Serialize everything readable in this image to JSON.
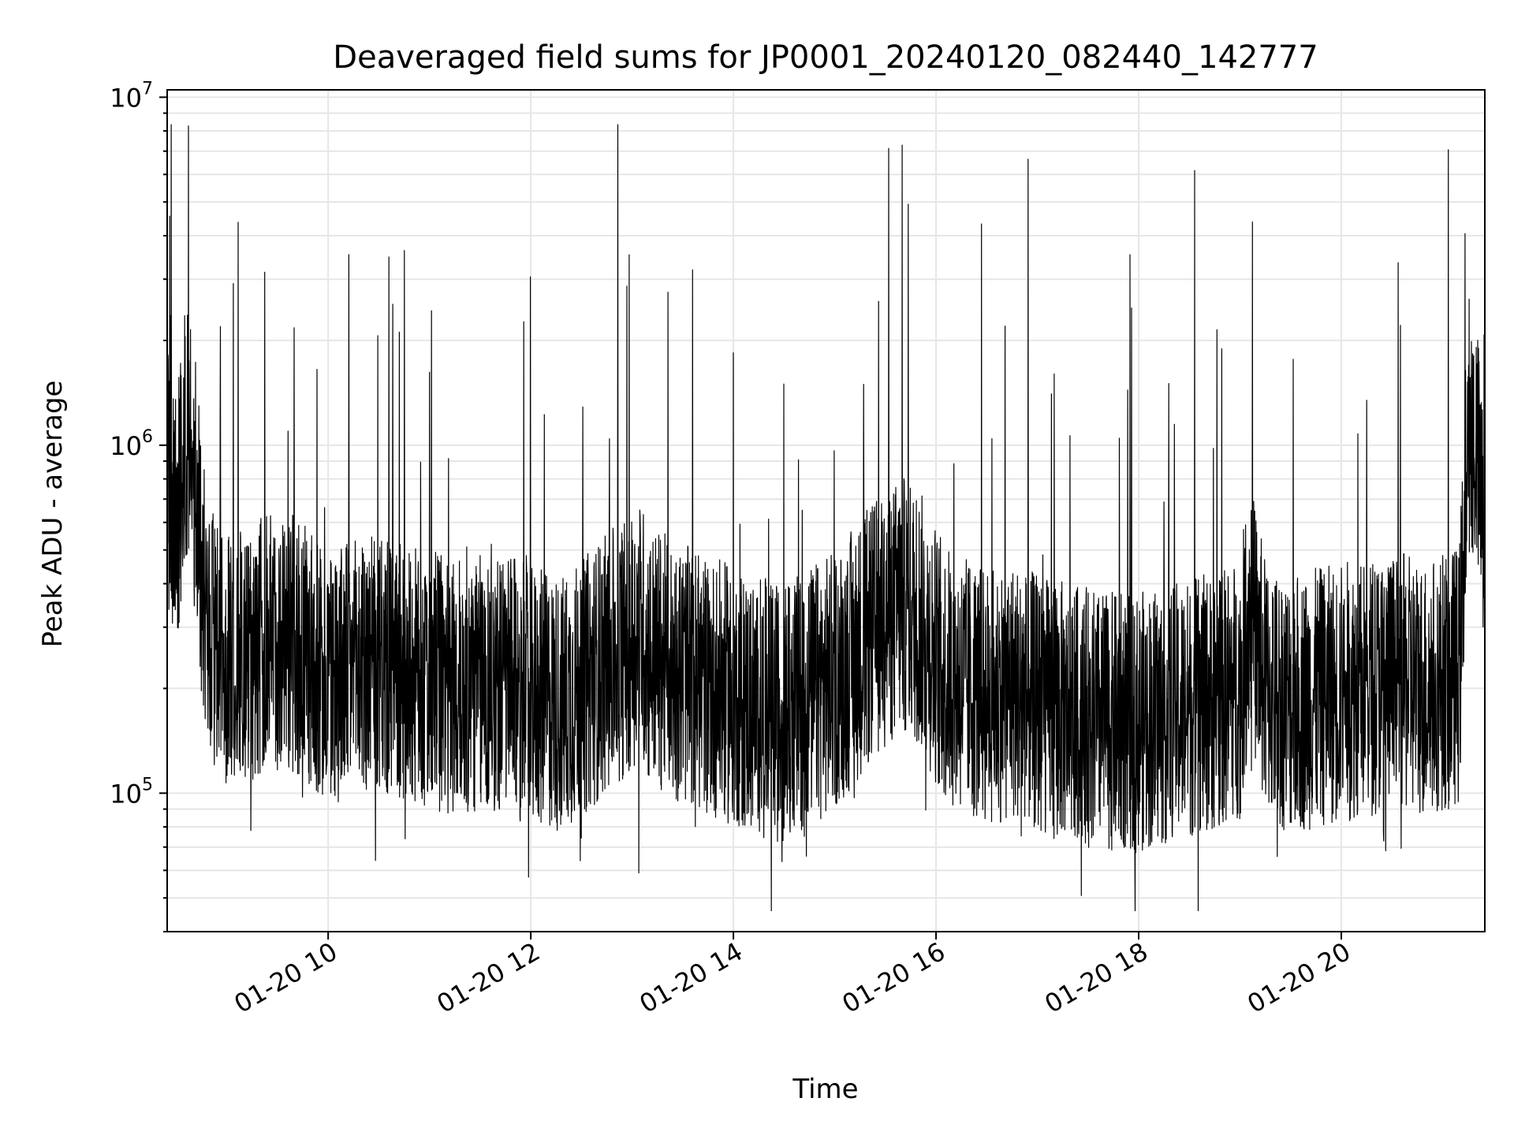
{
  "chart_data": {
    "type": "line",
    "title": "Deaveraged field sums for JP0001_20240120_082440_142777",
    "xlabel": "Time",
    "ylabel": "Peak ADU - average",
    "y_scale": "log",
    "ylim": [
      40000,
      10500000
    ],
    "xlim": [
      "2024-01-20T08:24:40",
      "2024-01-20T21:25:00"
    ],
    "grid": true,
    "line_color": "#000000",
    "grid_color": "#e6e6e6",
    "x_ticks": [
      {
        "value": "2024-01-20T10:00:00",
        "label": "01-20 10"
      },
      {
        "value": "2024-01-20T12:00:00",
        "label": "01-20 12"
      },
      {
        "value": "2024-01-20T14:00:00",
        "label": "01-20 14"
      },
      {
        "value": "2024-01-20T16:00:00",
        "label": "01-20 16"
      },
      {
        "value": "2024-01-20T18:00:00",
        "label": "01-20 18"
      },
      {
        "value": "2024-01-20T20:00:00",
        "label": "01-20 20"
      }
    ],
    "y_ticks": [
      {
        "value": 100000,
        "base": "10",
        "exp": "5"
      },
      {
        "value": 1000000,
        "base": "10",
        "exp": "6"
      },
      {
        "value": 10000000,
        "base": "10",
        "exp": "7"
      }
    ],
    "series": [
      {
        "x": [
          "2024-01-20T08:24:40",
          "2024-01-20T08:30:00",
          "2024-01-20T08:36:00",
          "2024-01-20T08:40:00",
          "2024-01-20T08:48:00",
          "2024-01-20T08:55:00",
          "2024-01-20T09:00:00",
          "2024-01-20T09:10:00",
          "2024-01-20T09:20:00",
          "2024-01-20T09:36:00",
          "2024-01-20T09:45:00",
          "2024-01-20T10:00:00",
          "2024-01-20T10:20:00",
          "2024-01-20T10:40:00",
          "2024-01-20T11:00:00",
          "2024-01-20T11:20:00",
          "2024-01-20T11:40:00",
          "2024-01-20T12:00:00",
          "2024-01-20T12:18:00",
          "2024-01-20T12:30:00",
          "2024-01-20T12:42:00",
          "2024-01-20T12:55:00",
          "2024-01-20T13:05:00",
          "2024-01-20T13:10:00",
          "2024-01-20T13:30:00",
          "2024-01-20T13:50:00",
          "2024-01-20T14:10:00",
          "2024-01-20T14:28:00",
          "2024-01-20T14:45:00",
          "2024-01-20T15:00:00",
          "2024-01-20T15:12:00",
          "2024-01-20T15:25:00",
          "2024-01-20T15:40:00",
          "2024-01-20T15:50:00",
          "2024-01-20T16:05:00",
          "2024-01-20T16:20:00",
          "2024-01-20T16:32:00",
          "2024-01-20T16:45:00",
          "2024-01-20T17:00:00",
          "2024-01-20T17:20:00",
          "2024-01-20T17:40:00",
          "2024-01-20T18:00:00",
          "2024-01-20T18:20:00",
          "2024-01-20T18:40:00",
          "2024-01-20T19:00:00",
          "2024-01-20T19:06:00",
          "2024-01-20T19:15:00",
          "2024-01-20T19:30:00",
          "2024-01-20T19:50:00",
          "2024-01-20T20:10:00",
          "2024-01-20T20:30:00",
          "2024-01-20T20:50:00",
          "2024-01-20T21:00:00",
          "2024-01-20T21:10:00",
          "2024-01-20T21:15:00",
          "2024-01-20T21:20:00",
          "2024-01-20T21:25:00"
        ],
        "y": [
          800000,
          600000,
          1100000,
          900000,
          300000,
          260000,
          250000,
          240000,
          260000,
          280000,
          250000,
          220000,
          230000,
          220000,
          210000,
          200000,
          210000,
          190000,
          180000,
          200000,
          230000,
          260000,
          300000,
          250000,
          220000,
          200000,
          180000,
          170000,
          190000,
          210000,
          250000,
          300000,
          350000,
          320000,
          220000,
          200000,
          190000,
          200000,
          180000,
          170000,
          160000,
          160000,
          170000,
          180000,
          200000,
          350000,
          200000,
          180000,
          190000,
          200000,
          210000,
          200000,
          210000,
          220000,
          1200000,
          1000000,
          500000
        ]
      }
    ]
  }
}
